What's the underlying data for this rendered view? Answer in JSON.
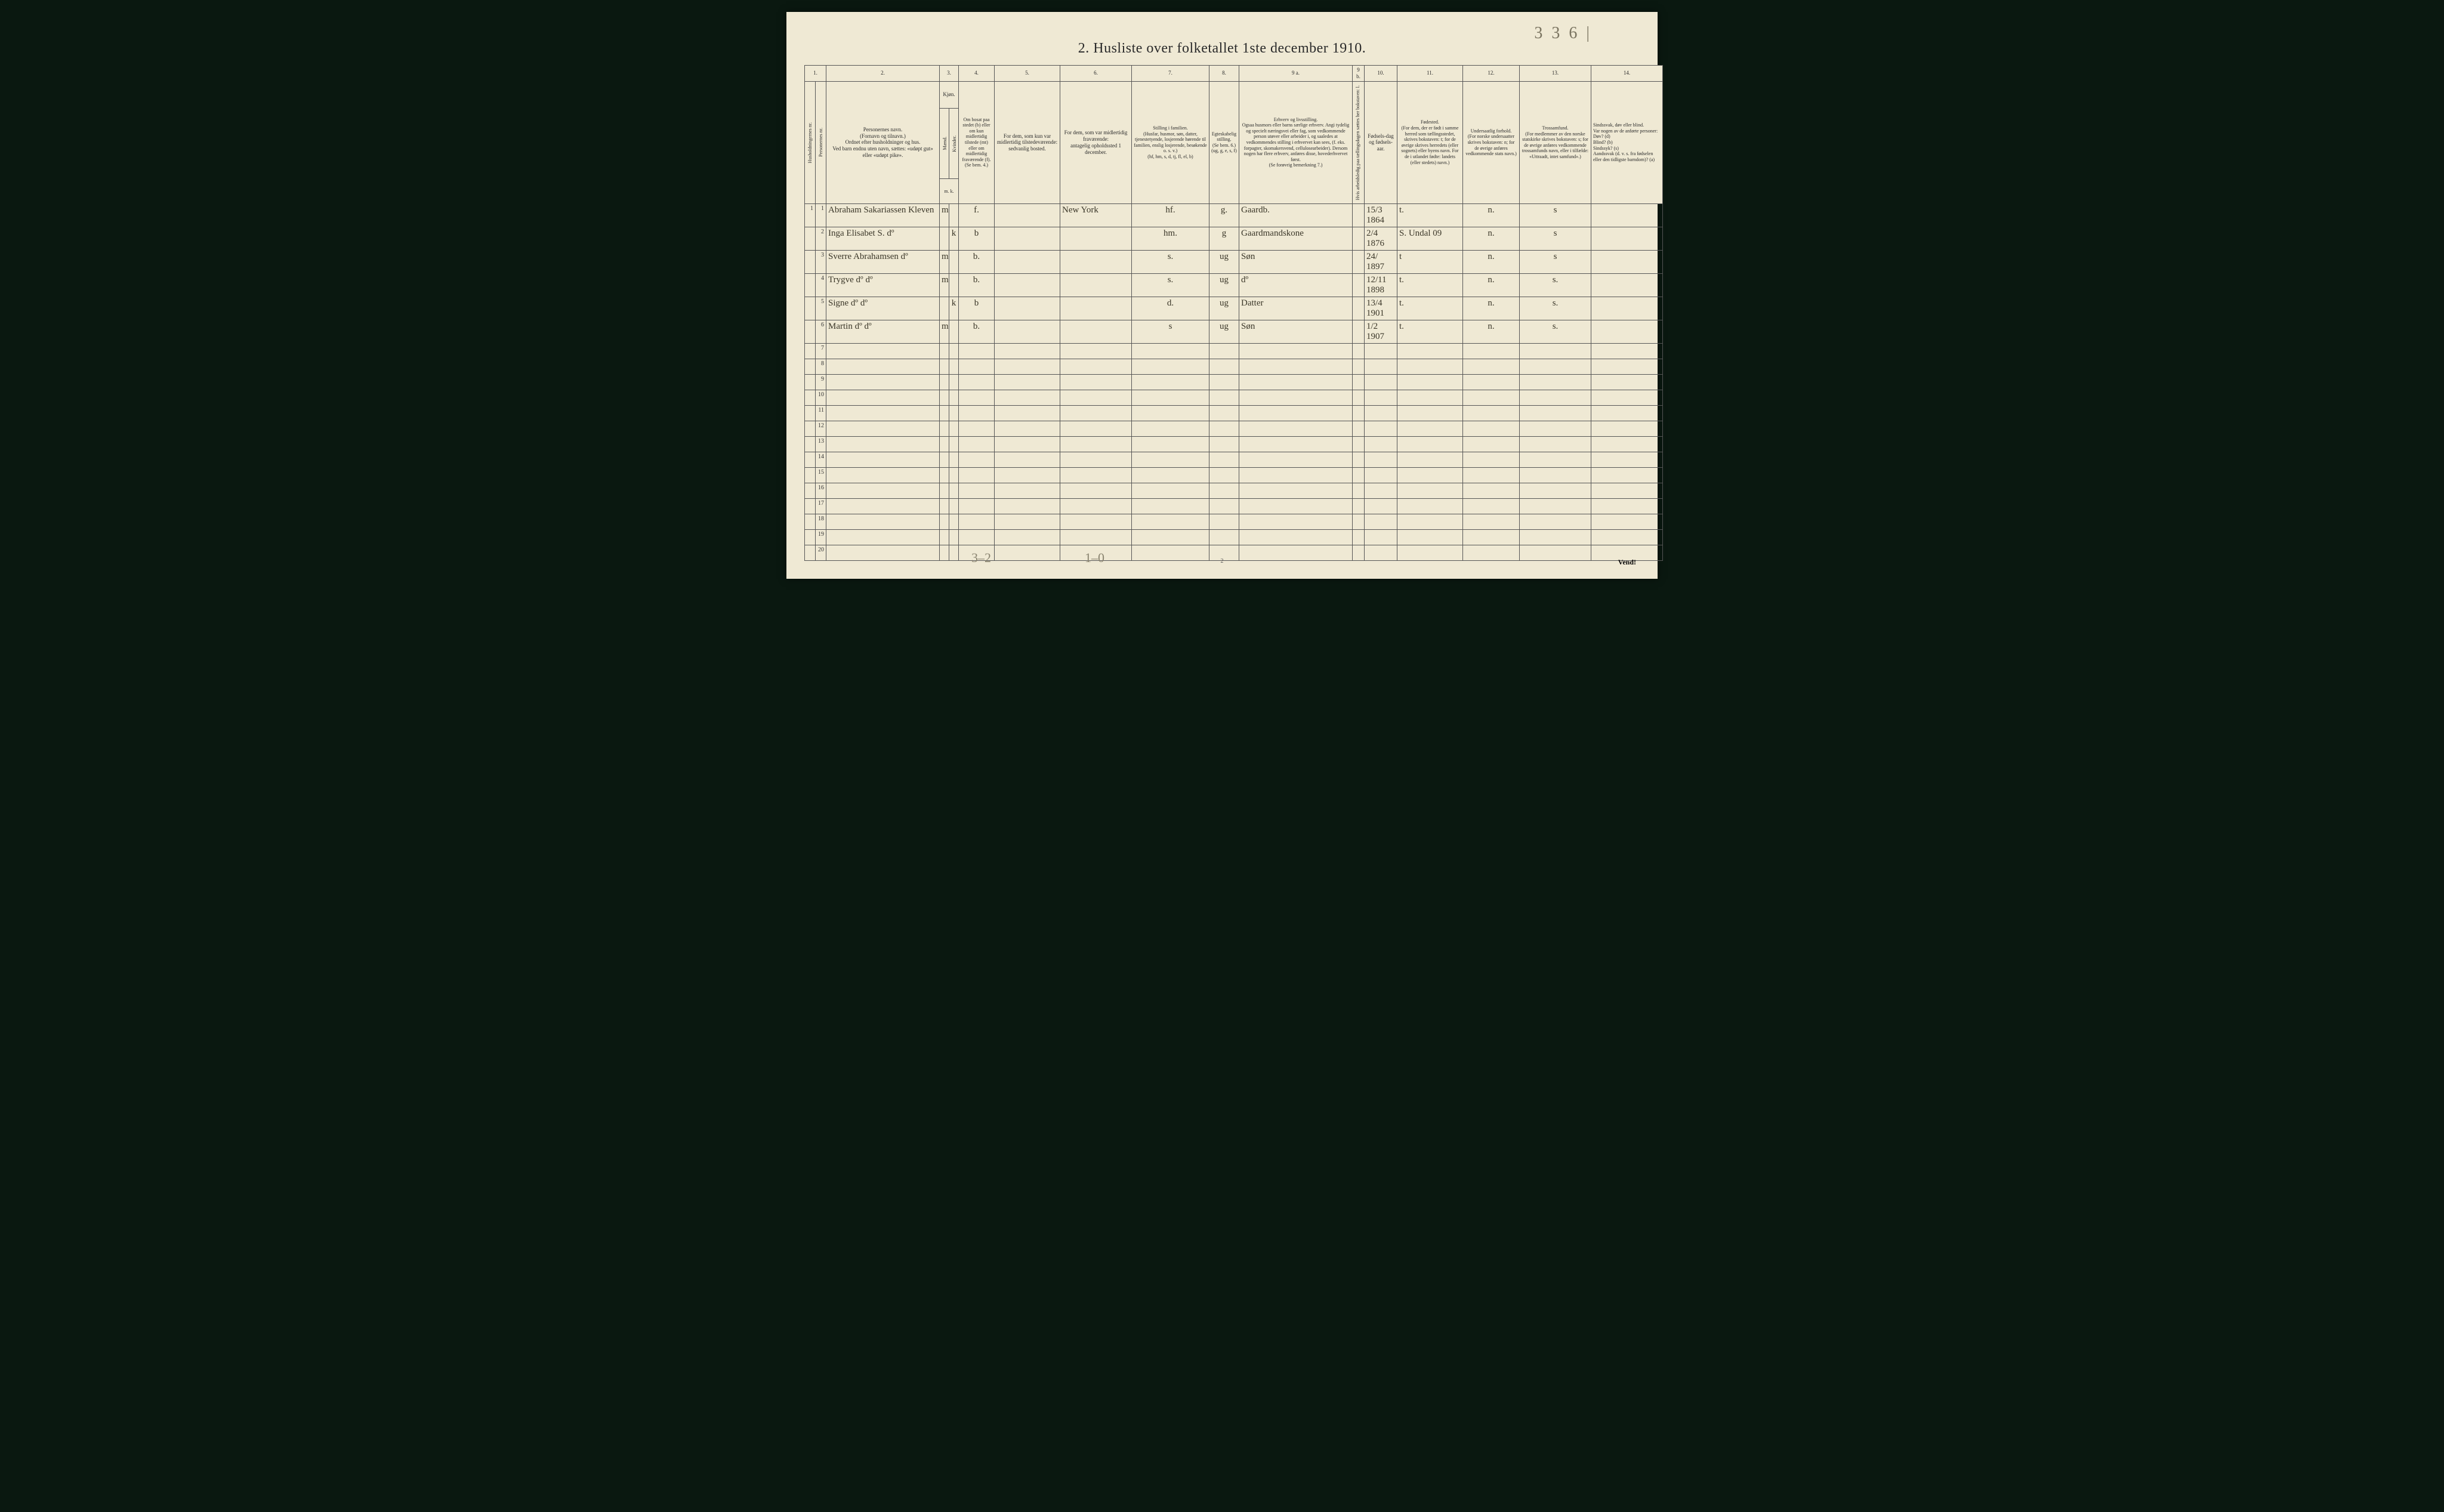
{
  "title": "2.  Husliste over folketallet 1ste december 1910.",
  "pencil_topright": "3 3 6 |",
  "pencil_bottom_left": "3–2",
  "pencil_bottom_mid": "1–0",
  "footer_center": "2",
  "footer_right": "Vend!",
  "colnums": {
    "c1": "1.",
    "c2": "2.",
    "c3": "3.",
    "c4": "4.",
    "c5": "5.",
    "c6": "6.",
    "c7": "7.",
    "c8": "8.",
    "c9a": "9 a.",
    "c9b": "9 b.",
    "c10": "10.",
    "c11": "11.",
    "c12": "12.",
    "c13": "13.",
    "c14": "14."
  },
  "head": {
    "c1a": "Husholdningernes nr.",
    "c1b": "Personernes nr.",
    "c2": "Personernes navn.\n(Fornavn og tilnavn.)\nOrdnet efter husholdninger og hus.\nVed barn endnu uten navn, sættes: «udøpt gut» eller «udøpt pike».",
    "c3": "Kjøn.",
    "c3m": "Mænd.",
    "c3k": "Kvinder.",
    "c3mk": "m.  k.",
    "c4": "Om bosat paa stedet (b) eller om kun midlertidig tilstede (mt) eller om midlertidig fraværende (f).\n(Se bem. 4.)",
    "c5": "For dem, som kun var midlertidig tilstedeværende:\nsedvanlig bosted.",
    "c6": "For dem, som var midlertidig fraværende:\nantagelig opholdssted 1 december.",
    "c7": "Stilling i familien.\n(Husfar, husmor, søn, datter, tjenestetyende, losjerende hørende til familien, enslig losjerende, besøkende o. s. v.)\n(hf, hm, s, d, tj, fl, el, b)",
    "c8": "Egteskabelig stilling.\n(Se bem. 6.)\n(ug, g, e, s, f)",
    "c9a": "Erhverv og livsstilling.\nOgsaa husmors eller barns særlige erhverv. Angi tydelig og specielt næringsvei eller fag, som vedkommende person utøver eller arbeider i, og saaledes at vedkommendes stilling i erhvervet kan sees, (f. eks. forpagter, skomakersvend, cellulosearbeider). Dersom nogen har flere erhverv, anføres disse, hovederhvervet først.\n(Se forøvrig bemerkning 7.)",
    "c9b": "Hvis arbeidsledig paa tællingsdagen sættes her bokstaven: l.",
    "c10": "Fødsels-dag og fødsels-aar.",
    "c11": "Fødested.\n(For dem, der er født i samme herred som tællingsstedet, skrives bokstaven: t; for de øvrige skrives herredets (eller sognets) eller byens navn. For de i utlandet fødte: landets (eller stedets) navn.)",
    "c12": "Undersaatlig forhold.\n(For norske undersaatter skrives bokstaven: n; for de øvrige anføres vedkommende stats navn.)",
    "c13": "Trossamfund.\n(For medlemmer av den norske statskirke skrives bokstaven: s; for de øvrige anføres vedkommende trossamfunds navn, eller i tilfælde: «Uttraadt, intet samfund».)",
    "c14": "Sindssvak, døv eller blind.\nVar nogen av de anførte personer:\nDøv?        (d)\nBlind?       (b)\nSindssyk?  (s)\nAandssvak (d. v. s. fra fødselen eller den tidligste barndom)?  (a)"
  },
  "rows": [
    {
      "hh": "1",
      "p": "1",
      "name": "Abraham Sakariassen Kleven",
      "m": "m",
      "k": "",
      "bf": "f.",
      "c5": "",
      "c6": "New York",
      "fam": "hf.",
      "egte": "g.",
      "erhv": "Gaardb.",
      "c9b": "",
      "dob": "15/3 1864",
      "fsted": "t.",
      "und": "n.",
      "tros": "s",
      "c14": ""
    },
    {
      "hh": "",
      "p": "2",
      "name": "Inga Elisabet S.        dº",
      "m": "",
      "k": "k",
      "bf": "b",
      "c5": "",
      "c6": "",
      "fam": "hm.",
      "egte": "g",
      "erhv": "Gaardmandskone",
      "c9b": "",
      "dob": "2/4 1876",
      "fsted": "S. Undal  09",
      "und": "n.",
      "tros": "s",
      "c14": ""
    },
    {
      "hh": "",
      "p": "3",
      "name": "Sverre Abrahamsen     dº",
      "m": "m",
      "k": "",
      "bf": "b.",
      "c5": "",
      "c6": "",
      "fam": "s.",
      "egte": "ug",
      "erhv": "Søn",
      "c9b": "",
      "dob": "24/ 1897",
      "fsted": "t",
      "und": "n.",
      "tros": "s",
      "c14": ""
    },
    {
      "hh": "",
      "p": "4",
      "name": "Trygve     dº          dº",
      "m": "m",
      "k": "",
      "bf": "b.",
      "c5": "",
      "c6": "",
      "fam": "s.",
      "egte": "ug",
      "erhv": "dº",
      "c9b": "",
      "dob": "12/11 1898",
      "fsted": "t.",
      "und": "n.",
      "tros": "s.",
      "c14": ""
    },
    {
      "hh": "",
      "p": "5",
      "name": "Signe      dº          dº",
      "m": "",
      "k": "k",
      "bf": "b",
      "c5": "",
      "c6": "",
      "fam": "d.",
      "egte": "ug",
      "erhv": "Datter",
      "c9b": "",
      "dob": "13/4 1901",
      "fsted": "t.",
      "und": "n.",
      "tros": "s.",
      "c14": ""
    },
    {
      "hh": "",
      "p": "6",
      "name": "Martin     dº          dº",
      "m": "m",
      "k": "",
      "bf": "b.",
      "c5": "",
      "c6": "",
      "fam": "s",
      "egte": "ug",
      "erhv": "Søn",
      "c9b": "",
      "dob": "1/2 1907",
      "fsted": "t.",
      "und": "n.",
      "tros": "s.",
      "c14": ""
    }
  ],
  "blank_start": 7,
  "blank_end": 20,
  "colwidths": {
    "c1a": 18,
    "c1b": 18,
    "c2": 190,
    "c3m": 16,
    "c3k": 16,
    "c4": 60,
    "c5": 110,
    "c6": 120,
    "c7": 130,
    "c8": 50,
    "c9a": 190,
    "c9b": 20,
    "c10": 55,
    "c11": 110,
    "c12": 95,
    "c13": 120,
    "c14": 120
  },
  "colors": {
    "paper": "#efe9d4",
    "ink": "#2a2a2a",
    "rule": "#555555",
    "hand": "#3a3628",
    "pencil": "#8a8470",
    "bg": "#0a1810"
  }
}
